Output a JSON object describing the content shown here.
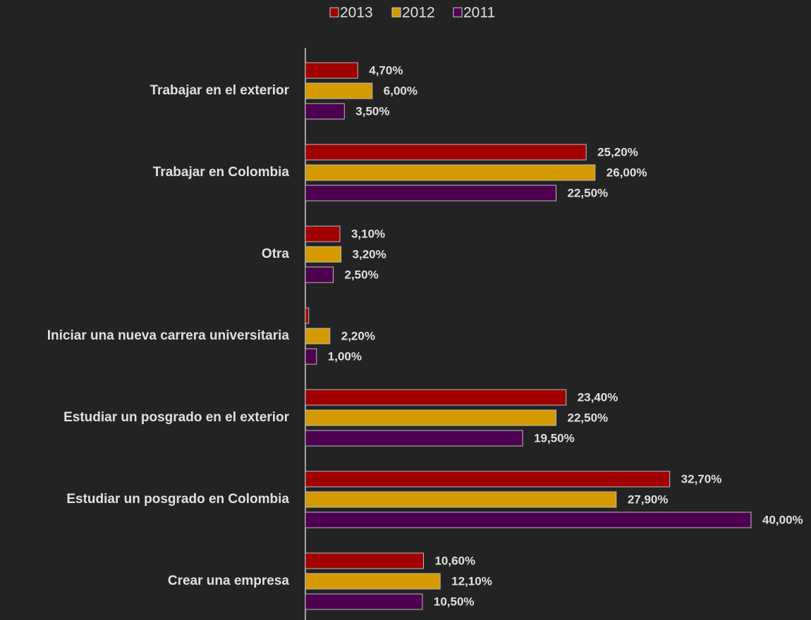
{
  "chart_data": {
    "type": "bar",
    "orientation": "horizontal",
    "categories": [
      "Trabajar en el exterior",
      "Trabajar en Colombia",
      "Otra",
      "Iniciar una nueva carrera universitaria",
      "Estudiar un posgrado en el exterior",
      "Estudiar un posgrado en Colombia",
      "Crear una empresa"
    ],
    "series": [
      {
        "name": "2013",
        "color": "#a00000",
        "values": [
          4.7,
          25.2,
          3.1,
          0.3,
          23.4,
          32.7,
          10.6
        ],
        "value_labels": [
          "4,70%",
          "25,20%",
          "3,10%",
          null,
          "23,40%",
          "32,70%",
          "10,60%"
        ]
      },
      {
        "name": "2012",
        "color": "#d49a00",
        "values": [
          6.0,
          26.0,
          3.2,
          2.2,
          22.5,
          27.9,
          12.1
        ],
        "value_labels": [
          "6,00%",
          "26,00%",
          "3,20%",
          "2,20%",
          "22,50%",
          "27,90%",
          "12,10%"
        ]
      },
      {
        "name": "2011",
        "color": "#4e0050",
        "values": [
          3.5,
          22.5,
          2.5,
          1.0,
          19.5,
          40.0,
          10.5
        ],
        "value_labels": [
          "3,50%",
          "22,50%",
          "2,50%",
          "1,00%",
          "19,50%",
          "40,00%",
          "10,50%"
        ]
      }
    ],
    "xlim": [
      0,
      40
    ],
    "legend": "top"
  }
}
